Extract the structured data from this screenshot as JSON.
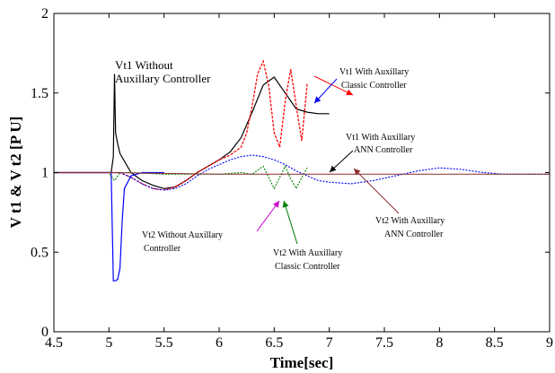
{
  "chart_data": {
    "type": "line",
    "title": "",
    "xlabel": "Time[sec]",
    "ylabel": "V t1 & V t2 [P U]",
    "xlim": [
      4.5,
      9
    ],
    "ylim": [
      0,
      2
    ],
    "x_ticks": [
      "4.5",
      "5",
      "5.5",
      "6",
      "6.5",
      "7",
      "7.5",
      "8",
      "8.5",
      "9"
    ],
    "y_ticks": [
      "0",
      "0.5",
      "1",
      "1.5",
      "2"
    ],
    "grid": false,
    "legend": "none",
    "series": [
      {
        "name": "Vt1 Without Auxillary Controller",
        "color": "#000000",
        "x": [
          4.5,
          5.0,
          5.02,
          5.04,
          5.05,
          5.06,
          5.08,
          5.1,
          5.15,
          5.2,
          5.3,
          5.4,
          5.5,
          5.6,
          5.7,
          5.8,
          5.9,
          6.0,
          6.1,
          6.2,
          6.3,
          6.4,
          6.5,
          6.6,
          6.7,
          6.8,
          6.9,
          7.0
        ],
        "y": [
          1.0,
          1.0,
          1.0,
          1.1,
          1.62,
          1.25,
          1.18,
          1.12,
          1.06,
          1.0,
          0.95,
          0.92,
          0.9,
          0.91,
          0.95,
          1.0,
          1.04,
          1.08,
          1.13,
          1.22,
          1.38,
          1.55,
          1.6,
          1.5,
          1.4,
          1.38,
          1.37,
          1.37
        ]
      },
      {
        "name": "Vt1 With Auxillary Classic Controller",
        "color": "#ff0000",
        "x": [
          4.5,
          5.0,
          5.1,
          5.2,
          5.3,
          5.4,
          5.5,
          5.6,
          5.7,
          5.8,
          5.9,
          6.0,
          6.1,
          6.2,
          6.25,
          6.3,
          6.35,
          6.4,
          6.45,
          6.5,
          6.55,
          6.6,
          6.65,
          6.7,
          6.75,
          6.8
        ],
        "y": [
          1.0,
          1.0,
          1.0,
          0.97,
          0.93,
          0.9,
          0.89,
          0.91,
          0.95,
          1.0,
          1.04,
          1.08,
          1.11,
          1.16,
          1.25,
          1.42,
          1.62,
          1.7,
          1.55,
          1.25,
          1.16,
          1.45,
          1.65,
          1.42,
          1.2,
          1.56
        ]
      },
      {
        "name": "Vt1 With Auxillary ANN Controller",
        "color": "#0000ff",
        "x": [
          4.5,
          5.0,
          5.1,
          5.2,
          5.3,
          5.4,
          5.5,
          5.6,
          5.7,
          5.8,
          5.9,
          6.0,
          6.1,
          6.2,
          6.3,
          6.4,
          6.5,
          6.6,
          6.7,
          6.8,
          6.9,
          7.0,
          7.2,
          7.4,
          7.6,
          7.8,
          8.0,
          8.2,
          8.4,
          8.6,
          8.8,
          9.0
        ],
        "y": [
          1.0,
          1.0,
          1.0,
          0.97,
          0.93,
          0.9,
          0.89,
          0.9,
          0.93,
          0.98,
          1.02,
          1.05,
          1.08,
          1.1,
          1.11,
          1.1,
          1.08,
          1.05,
          1.01,
          0.98,
          0.95,
          0.94,
          0.93,
          0.95,
          0.98,
          1.01,
          1.03,
          1.02,
          1.0,
          0.99,
          0.99,
          0.99
        ]
      },
      {
        "name": "Vt2 Without Auxillary Controller",
        "color": "#0000ff",
        "x": [
          4.5,
          5.0,
          5.02,
          5.04,
          5.06,
          5.08,
          5.1,
          5.12,
          5.14,
          5.2,
          5.3,
          5.5
        ],
        "y": [
          1.0,
          1.0,
          1.0,
          0.32,
          0.32,
          0.33,
          0.4,
          0.7,
          0.9,
          0.98,
          1.0,
          1.0
        ]
      },
      {
        "name": "Vt2 With Auxillary Classic Controller",
        "color": "#008000",
        "x": [
          4.5,
          5.0,
          5.05,
          5.1,
          5.2,
          5.5,
          6.0,
          6.2,
          6.3,
          6.4,
          6.45,
          6.5,
          6.55,
          6.6,
          6.65,
          6.7,
          6.75,
          6.8
        ],
        "y": [
          1.0,
          1.0,
          0.95,
          1.0,
          1.0,
          0.99,
          0.99,
          1.0,
          0.99,
          1.04,
          0.97,
          0.9,
          0.97,
          1.04,
          0.96,
          0.9,
          0.97,
          1.03
        ]
      },
      {
        "name": "Vt2 With Auxillary ANN Controller",
        "color": "#8b2c2c",
        "x": [
          4.5,
          5.0,
          6.0,
          7.0,
          8.0,
          9.0
        ],
        "y": [
          1.0,
          1.0,
          0.99,
          0.99,
          0.99,
          0.99
        ]
      }
    ],
    "annotations": [
      {
        "lines": [
          "Vt1 Without",
          "Auxillary Controller"
        ]
      },
      {
        "lines": [
          "Vt1 With Auxillary",
          "Classic Controller"
        ]
      },
      {
        "lines": [
          "Vt1 With Auxillary",
          "ANN Controller"
        ]
      },
      {
        "lines": [
          "Vt2 Without Auxillary",
          "Controller"
        ]
      },
      {
        "lines": [
          "Vt2 With Auxillary",
          "Classic Controller"
        ]
      },
      {
        "lines": [
          "Vt2 With Auxillary",
          "ANN Controller"
        ]
      }
    ]
  }
}
